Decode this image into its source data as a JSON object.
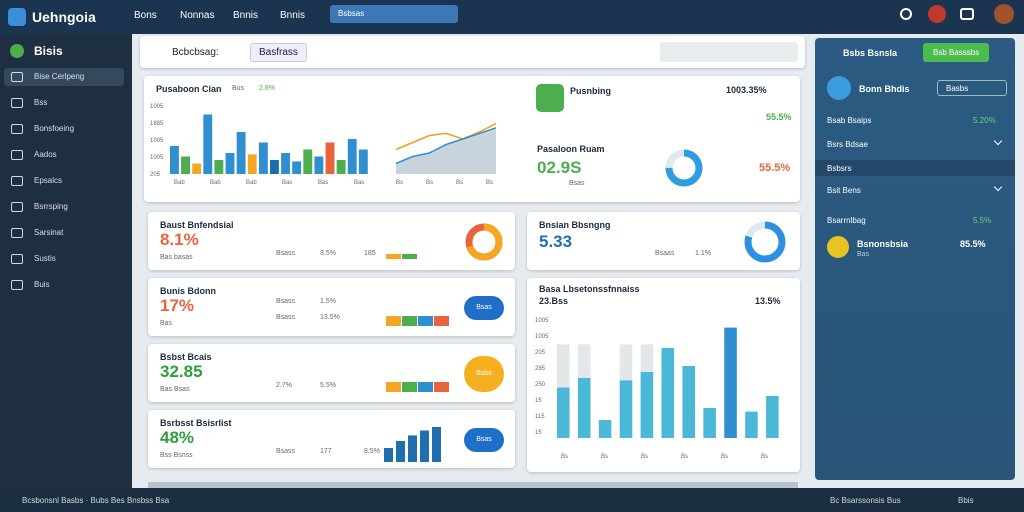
{
  "header": {
    "brand": "Uehngoia",
    "nav": [
      "Bons",
      "Nonnas",
      "Bnnis",
      "Bnnis"
    ],
    "search": "Bsbsas"
  },
  "sidebar": {
    "title": "Bisis",
    "items": [
      "Bise Cerlpeng",
      "Bss",
      "Bonsfoeing",
      "Aados",
      "Epsalcs",
      "Bsrrsping",
      "Sarsinat",
      "Sustis",
      "Buis"
    ]
  },
  "toolbar": {
    "label": "Bcbcbsag:",
    "button": "Basfrass"
  },
  "overview": {
    "title": "Pusaboon Cian",
    "legend": [
      "Bus",
      "2.8%"
    ],
    "y_labels": [
      "1005",
      "1885",
      "1005",
      "1005",
      "205"
    ],
    "x_labels": [
      "Bab",
      "Bab",
      "Bab",
      "Bas",
      "Bas",
      "Bas"
    ],
    "bars": [
      40,
      25,
      15,
      85,
      20,
      30,
      60,
      28,
      45,
      20,
      30,
      18,
      35,
      25,
      45,
      20,
      50,
      35
    ],
    "colors": [
      "#2f8fd0",
      "#4cae4c",
      "#f5a623",
      "#2f8fd0",
      "#4cae4c",
      "#2f8fd0",
      "#2f8fd0",
      "#f5a623",
      "#2f8fd0",
      "#1f6fb0",
      "#2f8fd0",
      "#2f8fd0",
      "#4cae4c",
      "#2f8fd0",
      "#e8643c",
      "#4cae4c",
      "#2f8fd0",
      "#2f8fd0"
    ],
    "line_ylim": [
      0,
      100
    ],
    "line_a": [
      35,
      45,
      55,
      58,
      50,
      60,
      72
    ],
    "line_b": [
      15,
      25,
      30,
      42,
      50,
      58,
      66
    ],
    "line_x_labels": [
      "Bs",
      "Bs",
      "Bs",
      "Bs"
    ]
  },
  "kpi": {
    "title": "Pusnbing",
    "value": "1003.35%",
    "sub": "55.5%"
  },
  "gauge": {
    "title": "Pasaloon Ruam",
    "value": "02.9S",
    "legend": "Bsas",
    "pct": "55.5%",
    "ring": 75
  },
  "cards": [
    {
      "title": "Baust Bnfendsial",
      "value": "8.1%",
      "sub": "Bas basas",
      "stats": [
        "Bsass",
        "3.5%",
        "185"
      ],
      "ring": 70,
      "ring_label": ""
    },
    {
      "title": "Bunis Bdonn",
      "value": "17%",
      "sub": "Bas",
      "stats": [
        "Bsass",
        "1.5%",
        "Bsass",
        "13.5%"
      ],
      "ring_label": "Bsas"
    },
    {
      "title": "Bsbst Bcais",
      "value": "32.85",
      "sub": "Bas Bsas",
      "stats": [
        "2.7%",
        "5.5%"
      ],
      "ring_label": "Bsbs"
    },
    {
      "title": "Bsrbsst Bsisrlist",
      "value": "48%",
      "sub": "Bss Bsnss",
      "stats": [
        "Bsass",
        "177",
        "8.5%"
      ],
      "ring_label": "Bsas",
      "bars": [
        20,
        30,
        38,
        45,
        50
      ]
    }
  ],
  "card_r1": {
    "title": "Bnsian Bbsngng",
    "value": "5.33",
    "stats": [
      "Bsaas",
      "1.1%"
    ],
    "ring": 80
  },
  "card_r2": {
    "title": "Basa Lbsetonssfnnaiss",
    "value": "23.Bss",
    "pct": "13.5%",
    "y_labels": [
      "1005",
      "1005",
      "205",
      "285",
      "250",
      "15",
      "115",
      "15"
    ],
    "bars": [
      42,
      50,
      15,
      48,
      55,
      75,
      60,
      25,
      92,
      22,
      35
    ],
    "bg_bars": [
      78,
      78,
      0,
      78,
      78,
      0,
      0,
      0,
      0,
      0,
      0
    ],
    "x_labels": [
      "Bs",
      "Bs",
      "Bs",
      "Bs",
      "Bs",
      "Bs"
    ],
    "ylim": [
      0,
      100
    ]
  },
  "panel": {
    "title": "Bsbs Bsnsla",
    "button": "Bsb Basssbs",
    "profile": "Bonn Bhdis",
    "select": "Basbs",
    "rows": [
      [
        "Bsab Bsaips",
        "5.20%"
      ],
      [
        "Bsrs Bdsae",
        ""
      ],
      [
        "Bsbsrs",
        ""
      ],
      [
        "Bsit Bens",
        ""
      ],
      [
        "Bsarrnlbag",
        "5.5%"
      ]
    ],
    "item": "Bsnonsbsia",
    "item_value": "85.5%",
    "item_sub": "Bas"
  },
  "footer": {
    "left": "Bcsbonsnl Basbs · Bubs Bes Bnsbss Bsa",
    "right": "Bc Bsarssonsis Bus",
    "end": "Bbis"
  }
}
